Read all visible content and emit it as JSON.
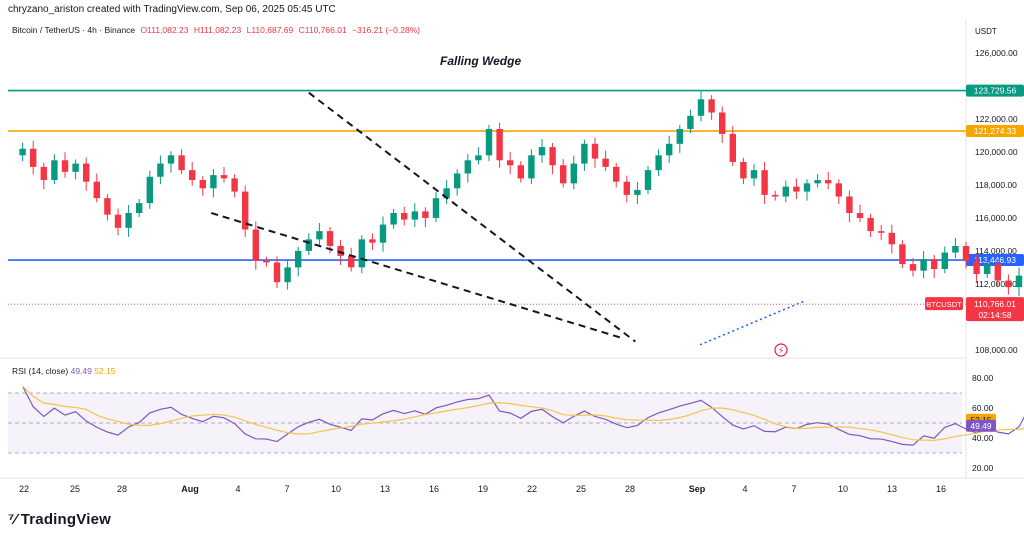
{
  "header": {
    "caption": "chryzano_ariston created with TradingView.com, Sep 06, 2025 05:45 UTC",
    "symbol": "Bitcoin / TetherUS · 4h · Binance",
    "open": "O111,082.23",
    "high": "H111,082.23",
    "low": "L110,687.69",
    "close": "C110,766.01",
    "change": "−316.21 (−0.28%)",
    "currency": "USDT"
  },
  "annotation": "Falling Wedge",
  "brand": "TradingView",
  "colors": {
    "green_line": "#089981",
    "orange_line": "#f7a600",
    "blue_line": "#2962ff",
    "up_candle": "#089981",
    "down_candle": "#f23645",
    "rsi_line": "#7e57c2",
    "rsi_ma": "#f7c34d",
    "price_tag": "#f23645"
  },
  "chart_data": {
    "type": "candlestick",
    "interval": "4h",
    "x_ticks": [
      "22",
      "25",
      "28",
      "Aug",
      "4",
      "7",
      "10",
      "13",
      "16",
      "19",
      "22",
      "25",
      "28",
      "Sep",
      "4",
      "7",
      "10",
      "13",
      "16"
    ],
    "price_axis": {
      "ticks": [
        "126,000.00",
        "122,000.00",
        "120,000.00",
        "118,000.00",
        "116,000.00",
        "114,000.00",
        "112,000.00",
        "108,000.00"
      ],
      "range": [
        107500,
        126800
      ]
    },
    "levels": [
      {
        "label": "123,729.56",
        "value": 123729.56,
        "color": "#089981"
      },
      {
        "label": "121,274.33",
        "value": 121274.33,
        "color": "#f7a600"
      },
      {
        "label": "113,446.93",
        "value": 113446.93,
        "color": "#2962ff"
      }
    ],
    "current": {
      "symbol": "BTCUSDT",
      "price": "110,766.01",
      "countdown": "02:14:58",
      "value": 110766.01
    },
    "wedge": {
      "upper": [
        [
          14,
          123600
        ],
        [
          29.4,
          108500
        ]
      ],
      "lower": [
        [
          9.4,
          116300
        ],
        [
          28.8,
          108700
        ]
      ],
      "breakout_support": [
        [
          29.4,
          108300
        ],
        [
          34.5,
          111000
        ]
      ]
    },
    "price_path": [
      [
        0,
        119800
      ],
      [
        0.5,
        120200
      ],
      [
        1,
        119100
      ],
      [
        1.5,
        118300
      ],
      [
        2,
        119500
      ],
      [
        2.5,
        118800
      ],
      [
        3,
        119300
      ],
      [
        3.5,
        118200
      ],
      [
        4,
        117200
      ],
      [
        4.5,
        116200
      ],
      [
        5,
        115400
      ],
      [
        5.5,
        116300
      ],
      [
        6,
        116900
      ],
      [
        6.5,
        118500
      ],
      [
        7,
        119300
      ],
      [
        7.5,
        119800
      ],
      [
        8,
        118900
      ],
      [
        8.5,
        118300
      ],
      [
        9,
        117800
      ],
      [
        9.5,
        118600
      ],
      [
        10,
        118400
      ],
      [
        10.5,
        117600
      ],
      [
        11,
        115300
      ],
      [
        11.5,
        113400
      ],
      [
        12,
        113300
      ],
      [
        12.5,
        112100
      ],
      [
        13,
        113000
      ],
      [
        13.5,
        114000
      ],
      [
        14,
        114700
      ],
      [
        14.5,
        115200
      ],
      [
        15,
        114300
      ],
      [
        15.5,
        113700
      ],
      [
        16,
        113000
      ],
      [
        16.5,
        114700
      ],
      [
        17,
        114500
      ],
      [
        17.5,
        115600
      ],
      [
        18,
        116300
      ],
      [
        18.5,
        115900
      ],
      [
        19,
        116400
      ],
      [
        19.5,
        116000
      ],
      [
        20,
        117200
      ],
      [
        20.5,
        117800
      ],
      [
        21,
        118700
      ],
      [
        21.5,
        119500
      ],
      [
        22,
        119800
      ],
      [
        22.5,
        121400
      ],
      [
        23,
        119500
      ],
      [
        23.5,
        119200
      ],
      [
        24,
        118400
      ],
      [
        24.5,
        119800
      ],
      [
        25,
        120300
      ],
      [
        25.5,
        119200
      ],
      [
        26,
        118100
      ],
      [
        26.5,
        119300
      ],
      [
        27,
        120500
      ],
      [
        27.5,
        119600
      ],
      [
        28,
        119100
      ],
      [
        28.5,
        118200
      ],
      [
        29,
        117400
      ],
      [
        29.5,
        117700
      ],
      [
        30,
        118900
      ],
      [
        30.5,
        119800
      ],
      [
        31,
        120500
      ],
      [
        31.5,
        121400
      ],
      [
        32,
        122200
      ],
      [
        32.5,
        123200
      ],
      [
        33,
        122400
      ],
      [
        33.5,
        121100
      ],
      [
        34,
        119400
      ],
      [
        34.5,
        118400
      ],
      [
        35,
        118900
      ],
      [
        35.5,
        117400
      ],
      [
        36,
        117300
      ],
      [
        36.5,
        117900
      ],
      [
        37,
        117600
      ],
      [
        37.5,
        118100
      ],
      [
        38,
        118300
      ],
      [
        38.5,
        118100
      ],
      [
        39,
        117300
      ],
      [
        39.5,
        116300
      ],
      [
        40,
        116000
      ],
      [
        40.5,
        115200
      ],
      [
        41,
        115100
      ],
      [
        41.5,
        114400
      ],
      [
        42,
        113200
      ],
      [
        42.5,
        112800
      ],
      [
        43,
        113500
      ],
      [
        43.5,
        112900
      ],
      [
        44,
        113900
      ],
      [
        44.5,
        114300
      ],
      [
        45,
        113400
      ],
      [
        45.5,
        112600
      ],
      [
        46,
        113200
      ],
      [
        46.5,
        112200
      ],
      [
        47,
        111800
      ],
      [
        47.5,
        112500
      ],
      [
        48,
        116400
      ],
      [
        48.5,
        116900
      ],
      [
        49,
        116200
      ],
      [
        49.5,
        115800
      ],
      [
        50,
        115400
      ],
      [
        50.5,
        114900
      ],
      [
        51,
        114300
      ],
      [
        51.5,
        113600
      ],
      [
        52,
        113400
      ],
      [
        52.5,
        112100
      ],
      [
        53,
        111300
      ],
      [
        53.5,
        110700
      ],
      [
        54,
        110200
      ],
      [
        54.5,
        110600
      ],
      [
        55,
        110900
      ],
      [
        55.5,
        111600
      ],
      [
        56,
        112100
      ],
      [
        56.5,
        112900
      ],
      [
        57,
        113200
      ],
      [
        57.5,
        112600
      ],
      [
        58,
        112100
      ],
      [
        58.5,
        111100
      ],
      [
        59,
        110300
      ],
      [
        59.5,
        109300
      ],
      [
        60,
        108800
      ],
      [
        60.5,
        108500
      ],
      [
        61,
        108900
      ],
      [
        61.5,
        109200
      ],
      [
        62,
        109000
      ],
      [
        62.5,
        109400
      ],
      [
        63,
        109200
      ],
      [
        63.5,
        108600
      ],
      [
        64,
        108700
      ],
      [
        64.5,
        109500
      ],
      [
        65,
        110600
      ],
      [
        65.5,
        111100
      ],
      [
        66,
        111300
      ],
      [
        66.5,
        111800
      ],
      [
        67,
        112500
      ],
      [
        67.5,
        112200
      ],
      [
        68,
        112400
      ],
      [
        68.5,
        111300
      ],
      [
        69,
        110700
      ],
      [
        69.5,
        110600
      ],
      [
        70,
        111800
      ],
      [
        70.5,
        113200
      ],
      [
        71,
        112400
      ],
      [
        71.5,
        111500
      ],
      [
        72,
        111100
      ],
      [
        72.5,
        110800
      ]
    ],
    "rsi": {
      "title": "RSI (14, close)",
      "value": "49.49",
      "ma_value": "52.15",
      "axis_ticks": [
        "80.00",
        "60.00",
        "40.00",
        "20.00"
      ],
      "range": [
        20,
        80
      ],
      "bands": [
        70,
        50,
        30
      ]
    }
  }
}
